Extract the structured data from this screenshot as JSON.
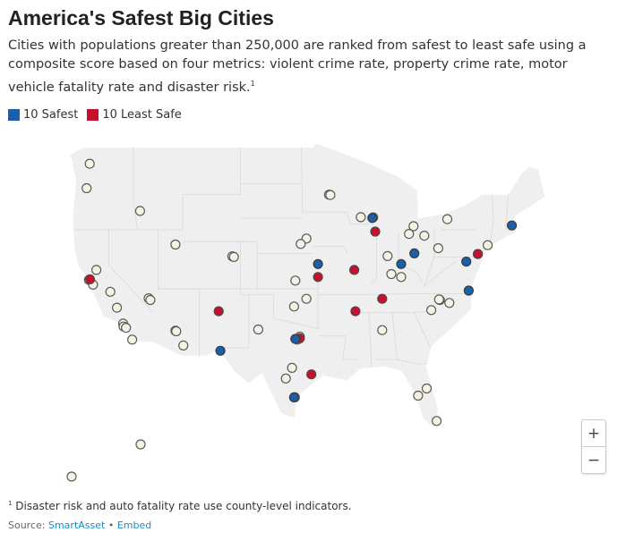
{
  "header": {
    "title": "America's Safest Big Cities",
    "subtitle": "Cities with populations greater than 250,000 are ranked from safest to least safe using a composite score based on four metrics: violent crime rate, property crime rate, motor vehicle fatality rate and disaster risk.",
    "subtitle_mark": "1"
  },
  "legend": {
    "safest_label": "10 Safest",
    "least_safe_label": "10 Least Safe",
    "safest_color": "#1a5fa8",
    "least_safe_color": "#c8102e",
    "other_color": "#f7f3e4"
  },
  "map": {
    "land_color": "#efefef",
    "border_color": "#ffffff",
    "safest_cities": [
      [
        -71.06,
        42.36
      ],
      [
        -88.0,
        43.0
      ],
      [
        -94.6,
        39.1
      ],
      [
        -82.9,
        40.0
      ],
      [
        -84.5,
        39.1
      ],
      [
        -76.6,
        39.3
      ],
      [
        -76.3,
        36.85
      ],
      [
        -97.35,
        32.75
      ],
      [
        -106.45,
        31.75
      ],
      [
        -97.5,
        27.8
      ]
    ],
    "least_safe_cities": [
      [
        -122.27,
        37.8
      ],
      [
        -87.65,
        41.85
      ],
      [
        -75.2,
        39.95
      ],
      [
        -94.6,
        38.0
      ],
      [
        -90.2,
        38.6
      ],
      [
        -86.8,
        36.15
      ],
      [
        -90.05,
        35.1
      ],
      [
        -106.65,
        35.1
      ],
      [
        -96.8,
        32.8
      ],
      [
        -95.4,
        29.75
      ]
    ],
    "other_cities": [
      [
        -122.68,
        45.52
      ],
      [
        -122.3,
        47.6
      ],
      [
        -121.5,
        38.6
      ],
      [
        -122.4,
        37.75
      ],
      [
        -121.9,
        37.35
      ],
      [
        -119.8,
        36.75
      ],
      [
        -119.0,
        35.4
      ],
      [
        -118.25,
        34.05
      ],
      [
        -118.2,
        33.8
      ],
      [
        -117.9,
        33.7
      ],
      [
        -117.15,
        32.7
      ],
      [
        -115.15,
        36.2
      ],
      [
        -114.95,
        36.05
      ],
      [
        -111.9,
        33.45
      ],
      [
        -111.8,
        33.4
      ],
      [
        -110.95,
        32.2
      ],
      [
        -111.9,
        40.75
      ],
      [
        -105.0,
        39.75
      ],
      [
        -104.8,
        39.7
      ],
      [
        -116.2,
        43.6
      ],
      [
        -93.26,
        44.98
      ],
      [
        -93.1,
        44.95
      ],
      [
        -89.4,
        43.07
      ],
      [
        -87.9,
        43.05
      ],
      [
        -96.0,
        41.26
      ],
      [
        -96.7,
        40.8
      ],
      [
        -97.5,
        35.5
      ],
      [
        -96.0,
        36.15
      ],
      [
        -97.35,
        37.7
      ],
      [
        -97.1,
        32.7
      ],
      [
        -96.8,
        32.95
      ],
      [
        -101.85,
        33.55
      ],
      [
        -98.5,
        29.4
      ],
      [
        -97.75,
        30.3
      ],
      [
        -97.4,
        27.8
      ],
      [
        -81.7,
        41.5
      ],
      [
        -83.0,
        42.3
      ],
      [
        -85.7,
        38.25
      ],
      [
        -84.5,
        38.0
      ],
      [
        -83.55,
        41.65
      ],
      [
        -86.15,
        39.77
      ],
      [
        -80.0,
        40.44
      ],
      [
        -78.9,
        42.9
      ],
      [
        -75.2,
        39.95
      ],
      [
        -74.0,
        40.7
      ],
      [
        -80.85,
        35.2
      ],
      [
        -78.65,
        35.8
      ],
      [
        -79.8,
        36.05
      ],
      [
        -79.9,
        36.1
      ],
      [
        -86.8,
        33.5
      ],
      [
        -82.45,
        27.95
      ],
      [
        -81.4,
        28.55
      ],
      [
        -80.2,
        25.8
      ],
      [
        -157.85,
        21.3
      ],
      [
        -149.9,
        61.2
      ]
    ]
  }
}
